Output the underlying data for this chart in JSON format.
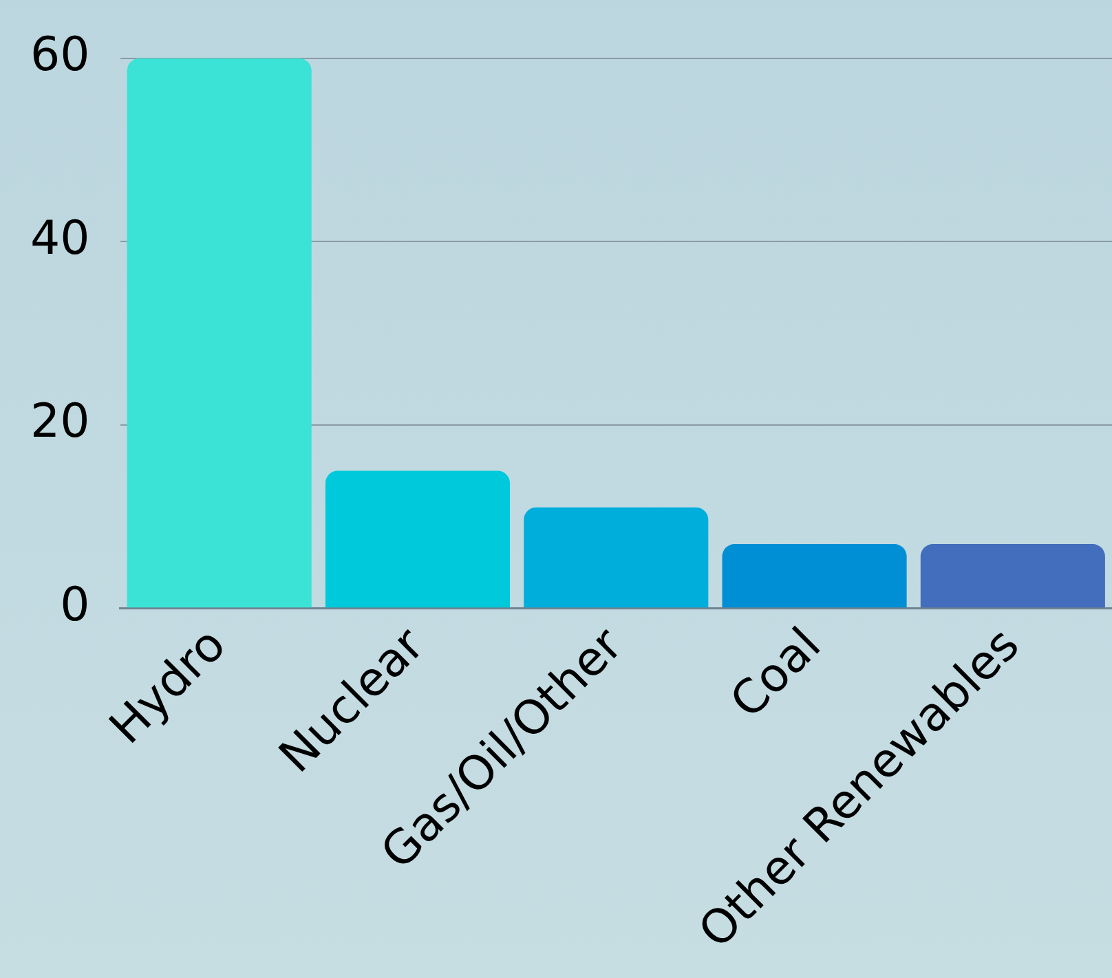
{
  "chart_data": {
    "type": "bar",
    "categories": [
      "Hydro",
      "Nuclear",
      "Gas/Oil/Other",
      "Coal",
      "Other Renewables"
    ],
    "values": [
      60,
      15,
      11,
      7,
      7
    ],
    "colors": [
      "#3be3d6",
      "#00c9db",
      "#00aedc",
      "#008fd5",
      "#436ebd"
    ],
    "ylim": [
      0,
      60
    ],
    "yticks": [
      0,
      20,
      40,
      60
    ],
    "grid": "y",
    "legend": false
  }
}
